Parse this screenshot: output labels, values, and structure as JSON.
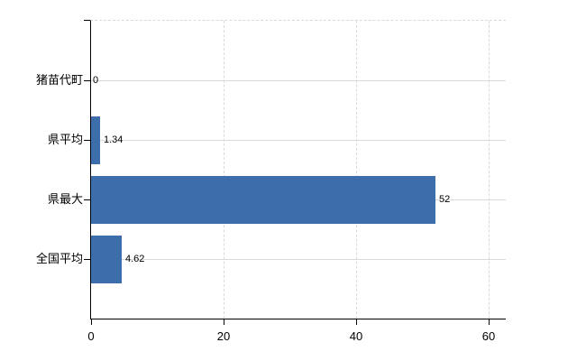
{
  "chart_data": {
    "type": "bar",
    "orientation": "horizontal",
    "title": "",
    "xlabel": "",
    "ylabel": "",
    "categories": [
      "猪苗代町",
      "県平均",
      "県最大",
      "全国平均"
    ],
    "values": [
      0,
      1.34,
      52,
      4.62
    ],
    "value_labels": [
      "0",
      "1.34",
      "52",
      "4.62"
    ],
    "xlim": [
      0,
      60
    ],
    "xticks": [
      0,
      20,
      40,
      60
    ],
    "xtick_labels": [
      "0",
      "20",
      "40",
      "60"
    ],
    "grid": true,
    "legend": false,
    "colors": {
      "bar": "#3e6dab",
      "grid_horizontal": "#d5ddd5",
      "grid_vertical": "#d9d9d9",
      "axis": "#000000",
      "text": "#000000",
      "background": "#ffffff"
    }
  }
}
